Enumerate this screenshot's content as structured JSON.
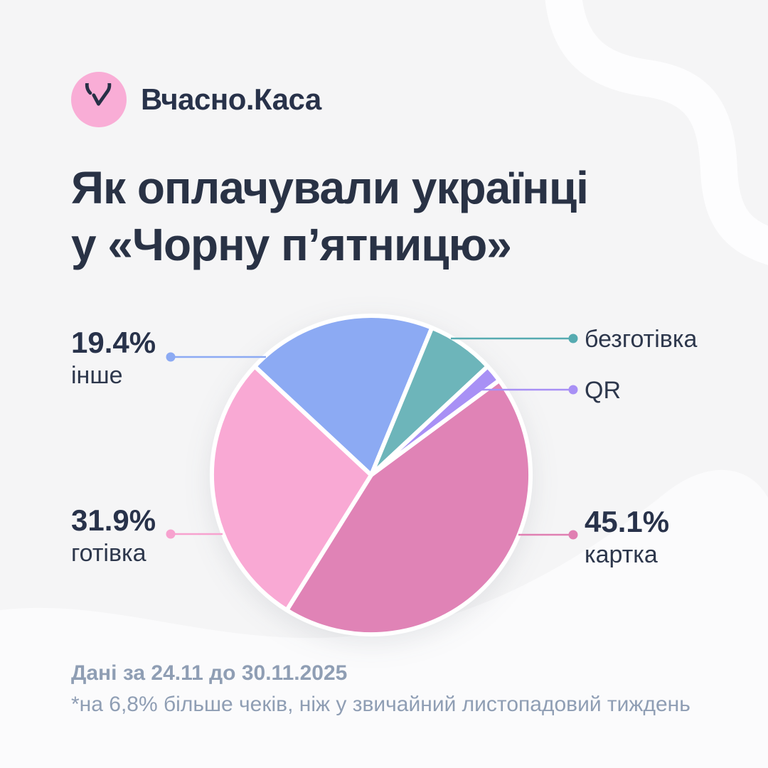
{
  "brand": {
    "name": "Вчасно.Каса",
    "icon": "check-circle-icon",
    "badge_color": "#f9add6",
    "icon_color": "#273046"
  },
  "title": {
    "line1": "Як оплачували українці",
    "line2": "у «Чорну п’ятницю»",
    "color": "#293245"
  },
  "footer": {
    "period": "Дані за 24.11 до 30.11.2025",
    "note": "*на 6,8% більше чеків, ніж у звичайний листопадовий тиждень",
    "color": "#8f9eb4"
  },
  "background": {
    "base_color": "#f5f5f6",
    "ribbon_color": "#fdfdfe",
    "bottom_wave_color": "#fbfbfc"
  },
  "chart_data": {
    "type": "pie",
    "title": "Як оплачували українці у «Чорну п’ятницю»",
    "unit": "%",
    "segments": [
      {
        "key": "kartka",
        "label": "картка",
        "value": 45.1,
        "display": "45.1%",
        "color": "#e083b6",
        "draw_deg": [
          413.5,
          572
        ]
      },
      {
        "key": "hotivka",
        "label": "готівка",
        "value": 31.9,
        "display": "31.9%",
        "color": "#f9a9d4",
        "draw_deg": [
          572,
          673
        ]
      },
      {
        "key": "inshe",
        "label": "інше",
        "value": 19.4,
        "display": "19.4%",
        "color": "#8caaf3",
        "draw_deg": [
          313,
          382.4
        ]
      },
      {
        "key": "bezhotivka",
        "label": "безготівка",
        "value": null,
        "display": "",
        "color": "#6db5ba",
        "draw_deg": [
          382.4,
          407
        ]
      },
      {
        "key": "qr",
        "label": "QR",
        "value": null,
        "display": "",
        "color": "#a890f5",
        "draw_deg": [
          407,
          413.5
        ]
      }
    ],
    "layout": {
      "center": [
        522,
        668
      ],
      "radius": 224,
      "slice_gap_color": "#ffffff",
      "slice_gap_width": 6,
      "connector_width": 2.5,
      "dot_radius": 6.5,
      "legend": "callouts"
    },
    "callouts": [
      {
        "key": "inshe",
        "percent": "19.4%",
        "label": "інше",
        "side": "left",
        "line": [
          374,
          502,
          240,
          502
        ],
        "color": "#8caaf3"
      },
      {
        "key": "hotivka",
        "percent": "31.9%",
        "label": "готівка",
        "side": "left",
        "line": [
          313,
          751,
          240,
          751
        ],
        "color": "#f7a2cf"
      },
      {
        "key": "kartka",
        "percent": "45.1%",
        "label": "картка",
        "side": "right",
        "line": [
          729,
          752,
          806,
          752
        ],
        "color": "#e07fb2"
      },
      {
        "key": "bezhotivka",
        "percent": "",
        "label": "безготівка",
        "side": "right",
        "line": [
          634,
          476,
          806,
          476
        ],
        "color": "#56abb1"
      },
      {
        "key": "qr",
        "percent": "",
        "label": "QR",
        "side": "right",
        "line": [
          676,
          548,
          806,
          548
        ],
        "color": "#a890f5"
      }
    ]
  }
}
